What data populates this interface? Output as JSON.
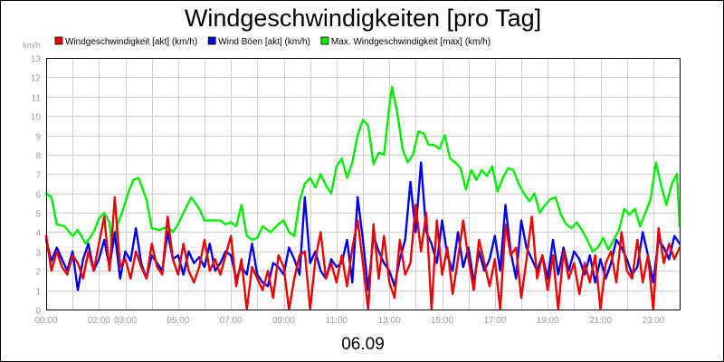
{
  "chart_data": {
    "type": "line",
    "title": "Windgeschwindigkeiten [pro Tag]",
    "ylabel": "km/h",
    "xlabel": "06.09",
    "ylim": [
      0,
      13
    ],
    "xlim": [
      0,
      24
    ],
    "grid": true,
    "legend_position": "top",
    "y_ticks": [
      "0",
      "1",
      "2",
      "3",
      "4",
      "5",
      "6",
      "7",
      "8",
      "9",
      "10",
      "11",
      "12",
      "13"
    ],
    "x_ticks": [
      {
        "x": 0,
        "label": "00:00"
      },
      {
        "x": 2,
        "label": "02:00"
      },
      {
        "x": 3,
        "label": "03:00"
      },
      {
        "x": 5,
        "label": "05:00"
      },
      {
        "x": 7,
        "label": "07:00"
      },
      {
        "x": 9,
        "label": "09:00"
      },
      {
        "x": 11,
        "label": "11:00"
      },
      {
        "x": 13,
        "label": "13:00"
      },
      {
        "x": 15,
        "label": "15:00"
      },
      {
        "x": 17,
        "label": "17:00"
      },
      {
        "x": 19,
        "label": "19:00"
      },
      {
        "x": 21,
        "label": "21:00"
      },
      {
        "x": 23,
        "label": "23:00"
      }
    ],
    "series": [
      {
        "name": "Max. Windgeschwindigkeit [max] (km/h)",
        "color": "#00ee00",
        "x": [
          0,
          0.2,
          0.4,
          0.7,
          1.0,
          1.2,
          1.5,
          1.8,
          2.0,
          2.2,
          2.4,
          2.5,
          2.7,
          2.9,
          3.1,
          3.3,
          3.5,
          3.8,
          4.0,
          4.3,
          4.6,
          4.8,
          5.0,
          5.2,
          5.5,
          5.8,
          6.0,
          6.3,
          6.6,
          6.8,
          7.0,
          7.2,
          7.4,
          7.6,
          7.8,
          8.0,
          8.2,
          8.5,
          8.8,
          9.0,
          9.2,
          9.4,
          9.6,
          9.8,
          10.0,
          10.2,
          10.4,
          10.6,
          10.8,
          11.0,
          11.2,
          11.4,
          11.6,
          11.8,
          12.0,
          12.2,
          12.4,
          12.6,
          12.8,
          13.0,
          13.1,
          13.3,
          13.5,
          13.7,
          13.9,
          14.1,
          14.3,
          14.5,
          14.7,
          14.9,
          15.1,
          15.3,
          15.5,
          15.7,
          15.9,
          16.1,
          16.3,
          16.5,
          16.7,
          16.9,
          17.1,
          17.3,
          17.5,
          17.7,
          17.9,
          18.1,
          18.3,
          18.5,
          18.7,
          18.9,
          19.1,
          19.3,
          19.5,
          19.7,
          19.9,
          20.1,
          20.3,
          20.5,
          20.7,
          20.9,
          21.1,
          21.3,
          21.5,
          21.7,
          21.9,
          22.1,
          22.3,
          22.5,
          22.7,
          22.9,
          23.1,
          23.3,
          23.5,
          23.7,
          23.9,
          24.0
        ],
        "values": [
          6.0,
          5.8,
          4.4,
          4.3,
          3.8,
          4.1,
          3.4,
          4.0,
          4.7,
          5.0,
          4.5,
          3.1,
          4.4,
          5.1,
          6.0,
          6.7,
          6.8,
          5.7,
          4.2,
          4.1,
          4.3,
          4.0,
          4.4,
          5.0,
          5.8,
          5.2,
          4.6,
          4.6,
          4.6,
          4.4,
          4.5,
          4.3,
          5.4,
          3.8,
          3.6,
          3.7,
          4.3,
          4.0,
          4.4,
          4.6,
          4.0,
          3.8,
          5.6,
          6.5,
          6.8,
          6.3,
          7.0,
          6.4,
          6.0,
          7.4,
          7.8,
          6.8,
          7.6,
          9.0,
          9.8,
          9.5,
          7.5,
          8.1,
          8.0,
          10.5,
          11.5,
          10.2,
          8.3,
          7.6,
          8.0,
          9.2,
          9.1,
          8.5,
          8.5,
          8.3,
          9.0,
          7.8,
          7.6,
          7.3,
          6.2,
          7.2,
          6.7,
          7.2,
          6.9,
          7.4,
          6.1,
          6.8,
          7.3,
          7.2,
          6.5,
          6.0,
          5.6,
          6.0,
          5.0,
          5.4,
          5.7,
          5.8,
          4.9,
          4.4,
          4.2,
          4.5,
          4.1,
          3.6,
          3.0,
          3.2,
          3.7,
          3.1,
          3.6,
          4.1,
          5.2,
          4.9,
          5.2,
          4.3,
          5.0,
          5.7,
          7.6,
          6.4,
          5.4,
          6.5,
          7.0,
          4.3
        ]
      },
      {
        "name": "Wind Böen [akt] (km/h)",
        "color": "#0000ee",
        "x": [
          0,
          0.2,
          0.4,
          0.6,
          0.8,
          1.0,
          1.2,
          1.4,
          1.6,
          1.8,
          2.0,
          2.2,
          2.4,
          2.6,
          2.8,
          3.0,
          3.2,
          3.4,
          3.6,
          3.8,
          4.0,
          4.2,
          4.4,
          4.6,
          4.8,
          5.0,
          5.2,
          5.4,
          5.6,
          5.8,
          6.0,
          6.2,
          6.4,
          6.6,
          6.8,
          7.0,
          7.2,
          7.4,
          7.6,
          7.8,
          8.0,
          8.2,
          8.4,
          8.6,
          8.8,
          9.0,
          9.2,
          9.4,
          9.6,
          9.8,
          10.0,
          10.2,
          10.4,
          10.6,
          10.8,
          11.0,
          11.2,
          11.4,
          11.6,
          11.8,
          12.0,
          12.2,
          12.4,
          12.6,
          12.8,
          13.0,
          13.2,
          13.4,
          13.6,
          13.8,
          14.0,
          14.2,
          14.4,
          14.6,
          14.8,
          15.0,
          15.2,
          15.4,
          15.6,
          15.8,
          16.0,
          16.2,
          16.4,
          16.6,
          16.8,
          17.0,
          17.2,
          17.4,
          17.6,
          17.8,
          18.0,
          18.2,
          18.4,
          18.6,
          18.8,
          19.0,
          19.2,
          19.4,
          19.6,
          19.8,
          20.0,
          20.2,
          20.4,
          20.6,
          20.8,
          21.0,
          21.2,
          21.4,
          21.6,
          21.8,
          22.0,
          22.2,
          22.4,
          22.6,
          22.8,
          23.0,
          23.2,
          23.4,
          23.6,
          23.8,
          24.0
        ],
        "values": [
          3.6,
          2.5,
          3.2,
          2.6,
          2.0,
          3.0,
          1.0,
          2.6,
          3.4,
          2.0,
          2.6,
          3.6,
          2.2,
          4.0,
          1.6,
          3.0,
          2.5,
          4.2,
          2.4,
          1.6,
          2.8,
          2.4,
          2.0,
          4.0,
          2.6,
          2.8,
          1.8,
          3.0,
          2.4,
          2.7,
          2.2,
          3.4,
          2.0,
          2.4,
          3.0,
          2.8,
          1.6,
          2.2,
          1.8,
          3.4,
          1.8,
          1.4,
          1.2,
          2.4,
          2.2,
          1.8,
          3.2,
          2.6,
          1.8,
          5.8,
          2.4,
          3.0,
          2.0,
          1.6,
          2.6,
          2.2,
          2.4,
          3.6,
          1.4,
          5.8,
          3.6,
          1.0,
          3.8,
          3.0,
          2.4,
          2.0,
          1.2,
          2.6,
          3.6,
          6.6,
          4.0,
          7.6,
          4.0,
          3.4,
          2.4,
          4.6,
          2.8,
          2.0,
          4.0,
          2.2,
          3.2,
          1.4,
          3.0,
          2.0,
          2.6,
          3.8,
          2.0,
          5.4,
          3.0,
          1.6,
          4.6,
          3.2,
          2.6,
          2.0,
          2.8,
          1.6,
          3.6,
          1.8,
          3.2,
          2.0,
          3.0,
          2.6,
          1.8,
          2.8,
          1.4,
          2.6,
          1.6,
          2.4,
          3.6,
          3.2,
          2.6,
          1.8,
          2.2,
          4.0,
          2.8,
          1.4,
          3.6,
          3.2,
          2.6,
          3.8,
          3.4
        ]
      },
      {
        "name": "Windgeschwindigkeit [akt] (km/h)",
        "color": "#ee0000",
        "x": [
          0,
          0.2,
          0.4,
          0.6,
          0.8,
          1.0,
          1.2,
          1.4,
          1.6,
          1.8,
          2.0,
          2.2,
          2.4,
          2.6,
          2.8,
          3.0,
          3.2,
          3.4,
          3.6,
          3.8,
          4.0,
          4.2,
          4.4,
          4.6,
          4.8,
          5.0,
          5.2,
          5.4,
          5.6,
          5.8,
          6.0,
          6.2,
          6.4,
          6.6,
          6.8,
          7.0,
          7.2,
          7.4,
          7.6,
          7.8,
          8.0,
          8.2,
          8.4,
          8.6,
          8.8,
          9.0,
          9.2,
          9.4,
          9.6,
          9.8,
          10.0,
          10.2,
          10.4,
          10.6,
          10.8,
          11.0,
          11.2,
          11.4,
          11.6,
          11.8,
          12.0,
          12.2,
          12.4,
          12.6,
          12.8,
          13.0,
          13.2,
          13.4,
          13.6,
          13.8,
          14.0,
          14.2,
          14.4,
          14.6,
          14.8,
          15.0,
          15.2,
          15.4,
          15.6,
          15.8,
          16.0,
          16.2,
          16.4,
          16.6,
          16.8,
          17.0,
          17.2,
          17.4,
          17.6,
          17.8,
          18.0,
          18.2,
          18.4,
          18.6,
          18.8,
          19.0,
          19.2,
          19.4,
          19.6,
          19.8,
          20.0,
          20.2,
          20.4,
          20.6,
          20.8,
          21.0,
          21.2,
          21.4,
          21.6,
          21.8,
          22.0,
          22.2,
          22.4,
          22.6,
          22.8,
          23.0,
          23.2,
          23.4,
          23.6,
          23.8,
          24.0
        ],
        "values": [
          3.8,
          2.0,
          3.0,
          2.2,
          1.8,
          2.8,
          2.4,
          1.6,
          3.0,
          2.0,
          3.4,
          4.8,
          2.0,
          5.8,
          2.2,
          2.6,
          1.6,
          3.0,
          2.2,
          1.6,
          3.4,
          2.2,
          1.8,
          4.8,
          2.6,
          1.8,
          3.4,
          2.0,
          1.4,
          2.2,
          3.6,
          2.0,
          2.6,
          1.8,
          2.8,
          3.8,
          1.2,
          2.6,
          0.0,
          2.2,
          1.6,
          1.0,
          2.0,
          0.6,
          2.8,
          2.2,
          0.0,
          1.6,
          2.8,
          3.0,
          0.0,
          2.6,
          4.0,
          1.6,
          2.4,
          1.4,
          2.8,
          1.2,
          3.2,
          4.6,
          2.4,
          0.0,
          4.4,
          1.6,
          3.8,
          1.4,
          0.6,
          3.6,
          1.8,
          2.4,
          5.4,
          3.0,
          5.0,
          0.0,
          4.6,
          1.8,
          3.2,
          0.8,
          2.6,
          4.6,
          2.6,
          1.0,
          3.6,
          2.4,
          1.2,
          2.6,
          0.0,
          4.4,
          2.8,
          3.2,
          0.6,
          2.6,
          4.8,
          1.6,
          2.8,
          1.0,
          2.8,
          0.0,
          3.0,
          1.6,
          2.4,
          0.8,
          2.4,
          1.4,
          2.8,
          0.0,
          2.4,
          3.0,
          1.4,
          4.0,
          2.0,
          1.6,
          3.6,
          1.4,
          2.8,
          0.0,
          4.2,
          2.4,
          3.4,
          2.6,
          3.2
        ]
      }
    ]
  }
}
